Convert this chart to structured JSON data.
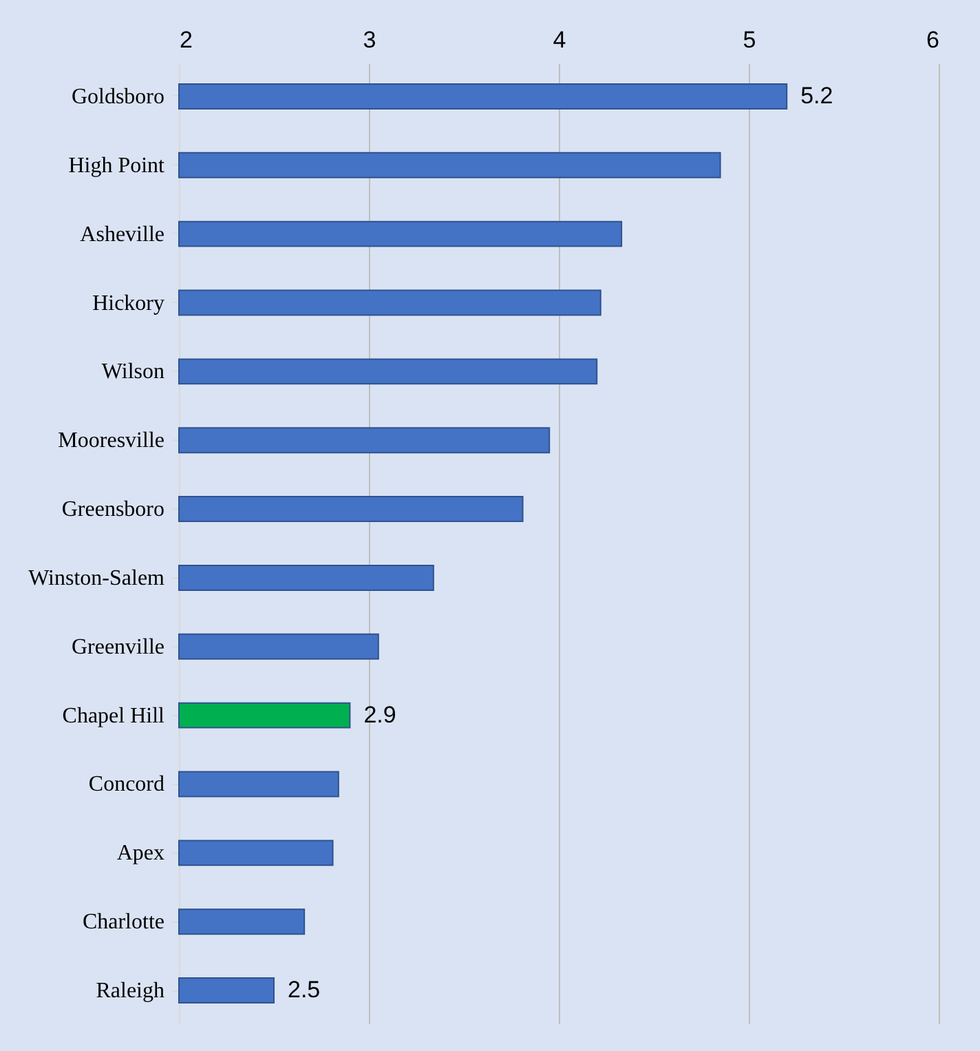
{
  "chart_data": {
    "type": "bar",
    "orientation": "horizontal",
    "categories": [
      "Goldsboro",
      "High Point",
      "Asheville",
      "Hickory",
      "Wilson",
      "Mooresville",
      "Greensboro",
      "Winston-Salem",
      "Greenville",
      "Chapel Hill",
      "Concord",
      "Apex",
      "Charlotte",
      "Raleigh"
    ],
    "values": [
      5.2,
      4.85,
      4.33,
      4.22,
      4.2,
      3.95,
      3.81,
      3.34,
      3.05,
      2.9,
      2.84,
      2.81,
      2.66,
      2.5
    ],
    "colors": [
      "#4472c4",
      "#4472c4",
      "#4472c4",
      "#4472c4",
      "#4472c4",
      "#4472c4",
      "#4472c4",
      "#4472c4",
      "#4472c4",
      "#00b050",
      "#4472c4",
      "#4472c4",
      "#4472c4",
      "#4472c4"
    ],
    "value_labels": [
      "5.2",
      null,
      null,
      null,
      null,
      null,
      null,
      null,
      null,
      "2.9",
      null,
      null,
      null,
      "2.5"
    ],
    "xlim": [
      2,
      6
    ],
    "xticks": [
      2,
      3,
      4,
      5,
      6
    ],
    "grid": "x"
  }
}
